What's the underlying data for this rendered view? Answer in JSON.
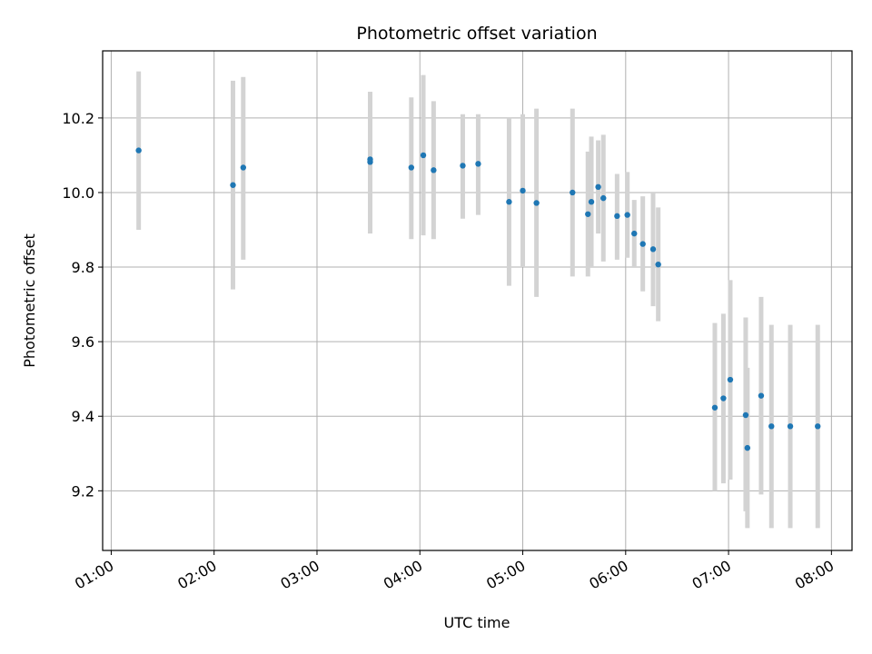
{
  "chart_data": {
    "type": "scatter",
    "title": "Photometric offset variation",
    "xlabel": "UTC time",
    "ylabel": "Photometric offset",
    "x_ticks": [
      "01:00",
      "02:00",
      "03:00",
      "04:00",
      "05:00",
      "06:00",
      "07:00",
      "08:00"
    ],
    "y_ticks": [
      "9.2",
      "9.4",
      "9.6",
      "9.8",
      "10.0",
      "10.2"
    ],
    "xlim": [
      "00:55",
      "08:12"
    ],
    "ylim": [
      9.04,
      10.38
    ],
    "grid": true,
    "point_color": "#1f77b4",
    "errorbar_color": "#d3d3d3",
    "points": [
      {
        "time": "01:16",
        "y": 10.113,
        "low": 9.9,
        "high": 10.325
      },
      {
        "time": "02:11",
        "y": 10.02,
        "low": 9.74,
        "high": 10.3
      },
      {
        "time": "02:17",
        "y": 10.067,
        "low": 9.82,
        "high": 10.31
      },
      {
        "time": "03:31",
        "y": 10.082,
        "low": 9.89,
        "high": 10.27
      },
      {
        "time": "03:31",
        "y": 10.089,
        "low": 9.91,
        "high": 10.27
      },
      {
        "time": "03:55",
        "y": 10.067,
        "low": 9.875,
        "high": 10.255
      },
      {
        "time": "04:02",
        "y": 10.1,
        "low": 9.885,
        "high": 10.315
      },
      {
        "time": "04:08",
        "y": 10.06,
        "low": 9.875,
        "high": 10.245
      },
      {
        "time": "04:25",
        "y": 10.072,
        "low": 9.93,
        "high": 10.21
      },
      {
        "time": "04:34",
        "y": 10.077,
        "low": 9.94,
        "high": 10.21
      },
      {
        "time": "04:52",
        "y": 9.975,
        "low": 9.75,
        "high": 10.2
      },
      {
        "time": "05:00",
        "y": 10.005,
        "low": 9.8,
        "high": 10.21
      },
      {
        "time": "05:08",
        "y": 9.972,
        "low": 9.72,
        "high": 10.225
      },
      {
        "time": "05:29",
        "y": 10.0,
        "low": 9.775,
        "high": 10.225
      },
      {
        "time": "05:38",
        "y": 9.942,
        "low": 9.775,
        "high": 10.11
      },
      {
        "time": "05:40",
        "y": 9.975,
        "low": 9.8,
        "high": 10.15
      },
      {
        "time": "05:44",
        "y": 10.015,
        "low": 9.89,
        "high": 10.14
      },
      {
        "time": "05:47",
        "y": 9.985,
        "low": 9.815,
        "high": 10.155
      },
      {
        "time": "05:55",
        "y": 9.937,
        "low": 9.82,
        "high": 10.05
      },
      {
        "time": "06:01",
        "y": 9.94,
        "low": 9.825,
        "high": 10.055
      },
      {
        "time": "06:05",
        "y": 9.89,
        "low": 9.8,
        "high": 9.98
      },
      {
        "time": "06:10",
        "y": 9.862,
        "low": 9.735,
        "high": 9.99
      },
      {
        "time": "06:16",
        "y": 9.848,
        "low": 9.695,
        "high": 10.0
      },
      {
        "time": "06:19",
        "y": 9.807,
        "low": 9.655,
        "high": 9.96
      },
      {
        "time": "06:52",
        "y": 9.423,
        "low": 9.2,
        "high": 9.65
      },
      {
        "time": "06:57",
        "y": 9.448,
        "low": 9.22,
        "high": 9.675
      },
      {
        "time": "07:01",
        "y": 9.498,
        "low": 9.23,
        "high": 9.765
      },
      {
        "time": "07:10",
        "y": 9.403,
        "low": 9.145,
        "high": 9.665
      },
      {
        "time": "07:11",
        "y": 9.315,
        "low": 9.1,
        "high": 9.53
      },
      {
        "time": "07:19",
        "y": 9.455,
        "low": 9.19,
        "high": 9.72
      },
      {
        "time": "07:25",
        "y": 9.373,
        "low": 9.1,
        "high": 9.645
      },
      {
        "time": "07:36",
        "y": 9.373,
        "low": 9.1,
        "high": 9.645
      },
      {
        "time": "07:52",
        "y": 9.373,
        "low": 9.1,
        "high": 9.645
      }
    ]
  }
}
